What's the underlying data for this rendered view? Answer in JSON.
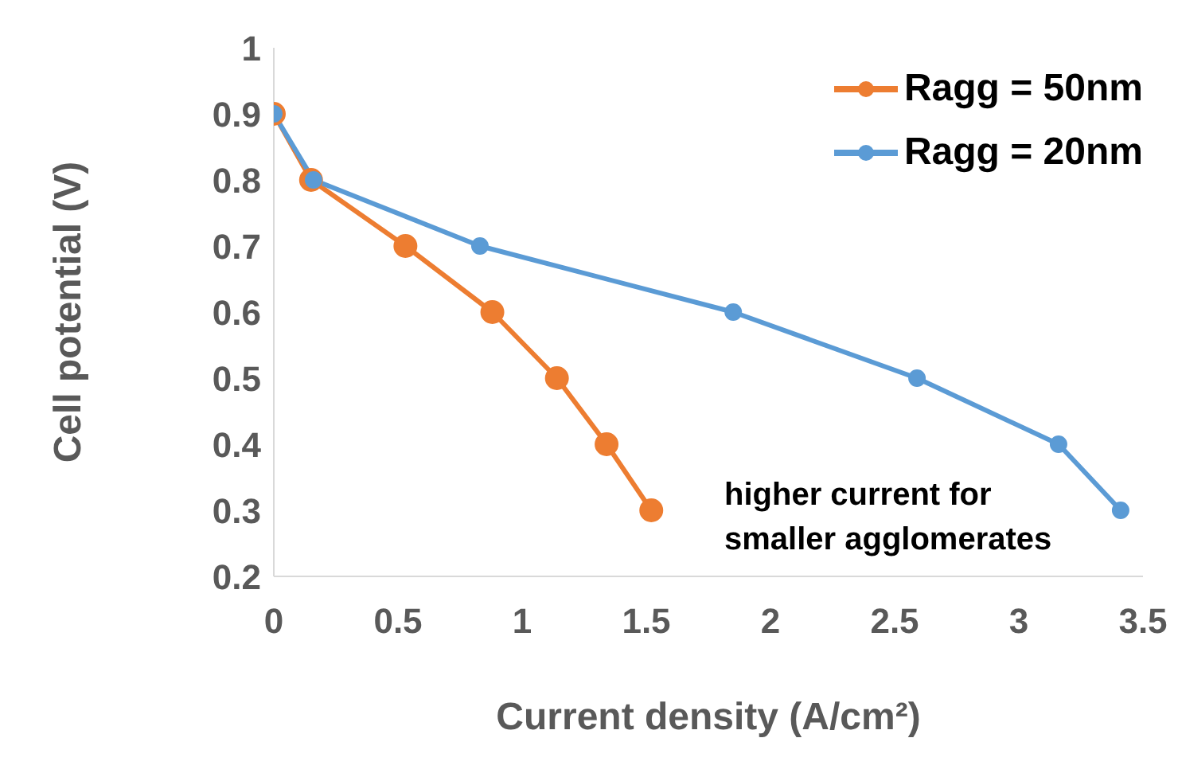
{
  "chart_data": {
    "type": "line",
    "xlabel": "Current density (A/cm²)",
    "ylabel": "Cell potential (V)",
    "xlim": [
      0,
      3.5
    ],
    "xticks": [
      0,
      0.5,
      1,
      1.5,
      2,
      2.5,
      3,
      3.5
    ],
    "ylim": [
      0.2,
      1
    ],
    "yticks": [
      0.2,
      0.3,
      0.4,
      0.5,
      0.6,
      0.7,
      0.8,
      0.9,
      1
    ],
    "grid": false,
    "legend": "top right",
    "marker": "circle",
    "line_style": "solid",
    "series": [
      {
        "name": "Ragg = 50nm",
        "color": "#ed7d31",
        "x": [
          0,
          0.15,
          0.53,
          0.88,
          1.14,
          1.34,
          1.52
        ],
        "values": [
          0.9,
          0.8,
          0.7,
          0.6,
          0.5,
          0.4,
          0.3
        ]
      },
      {
        "name": "Ragg = 20nm",
        "color": "#5b9bd5",
        "x": [
          0,
          0.16,
          0.83,
          1.85,
          2.59,
          3.16,
          3.41
        ],
        "values": [
          0.9,
          0.8,
          0.7,
          0.6,
          0.5,
          0.4,
          0.3
        ]
      }
    ],
    "annotations": [
      "higher current for\nsmaller agglomerates"
    ]
  }
}
